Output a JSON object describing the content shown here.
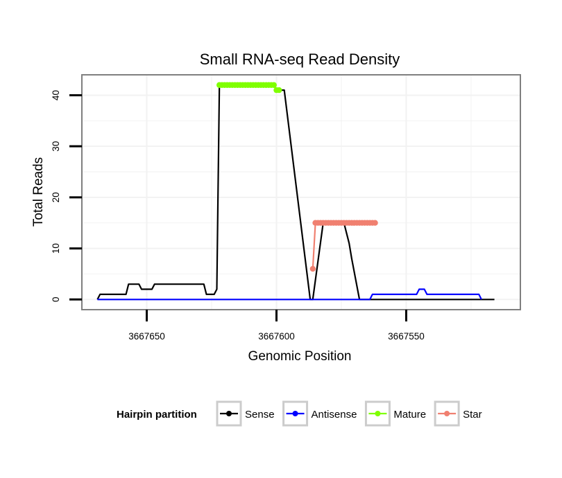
{
  "chart_data": {
    "type": "line",
    "title": "Small RNA-seq Read Density",
    "xlabel": "Genomic Position",
    "ylabel": "Total Reads",
    "x_reversed": true,
    "xlim": [
      3667675,
      3667506
    ],
    "ylim": [
      -2,
      44
    ],
    "x_ticks": [
      3667650,
      3667600,
      3667550
    ],
    "x_tick_labels": [
      "3667650",
      "3667600",
      "3667550"
    ],
    "y_ticks": [
      0,
      10,
      20,
      30,
      40
    ],
    "y_tick_labels": [
      "0",
      "10",
      "20",
      "30",
      "40"
    ],
    "grid": true,
    "legend": {
      "title": "Hairpin partition",
      "position": "bottom",
      "entries": [
        {
          "label": "Sense",
          "color": "#000000"
        },
        {
          "label": "Antisense",
          "color": "#0000ff"
        },
        {
          "label": "Mature",
          "color": "#7fff00"
        },
        {
          "label": "Star",
          "color": "#f08070"
        }
      ]
    },
    "series": [
      {
        "name": "Sense",
        "color": "#000000",
        "marker": false,
        "x": [
          3667669,
          3667668,
          3667658,
          3667657,
          3667653,
          3667652,
          3667648,
          3667647,
          3667643,
          3667642,
          3667628,
          3667627,
          3667624,
          3667623,
          3667622,
          3667601,
          3667600,
          3667597,
          3667587,
          3667586,
          3667582,
          3667578,
          3667574,
          3667572,
          3667571,
          3667568,
          3667567,
          3667516
        ],
        "values": [
          0,
          1,
          1,
          3,
          3,
          2,
          2,
          3,
          3,
          3,
          3,
          1,
          1,
          2,
          42,
          42,
          41,
          41,
          0,
          0,
          15,
          15,
          15,
          11,
          8,
          0,
          0,
          0
        ]
      },
      {
        "name": "Antisense",
        "color": "#0000ff",
        "marker": false,
        "x": [
          3667669,
          3667564,
          3667563,
          3667546,
          3667545,
          3667543,
          3667542,
          3667522,
          3667521
        ],
        "values": [
          0,
          0,
          1,
          1,
          2,
          2,
          1,
          1,
          0
        ]
      },
      {
        "name": "Mature",
        "color": "#7fff00",
        "marker": true,
        "x": [
          3667622,
          3667621,
          3667620,
          3667619,
          3667618,
          3667617,
          3667616,
          3667615,
          3667614,
          3667613,
          3667612,
          3667611,
          3667610,
          3667609,
          3667608,
          3667607,
          3667606,
          3667605,
          3667604,
          3667603,
          3667602,
          3667601,
          3667600,
          3667599
        ],
        "values": [
          42,
          42,
          42,
          42,
          42,
          42,
          42,
          42,
          42,
          42,
          42,
          42,
          42,
          42,
          42,
          42,
          42,
          42,
          42,
          42,
          42,
          42,
          41,
          41
        ]
      },
      {
        "name": "Star",
        "color": "#f08070",
        "marker": true,
        "x": [
          3667586,
          3667585,
          3667584,
          3667583,
          3667582,
          3667581,
          3667580,
          3667579,
          3667578,
          3667577,
          3667576,
          3667575,
          3667574,
          3667573,
          3667572,
          3667571,
          3667570,
          3667569,
          3667568,
          3667567,
          3667566,
          3667565,
          3667564,
          3667563,
          3667562
        ],
        "values": [
          6,
          15,
          15,
          15,
          15,
          15,
          15,
          15,
          15,
          15,
          15,
          15,
          15,
          15,
          15,
          15,
          15,
          15,
          15,
          15,
          15,
          15,
          15,
          15,
          15
        ]
      }
    ]
  }
}
